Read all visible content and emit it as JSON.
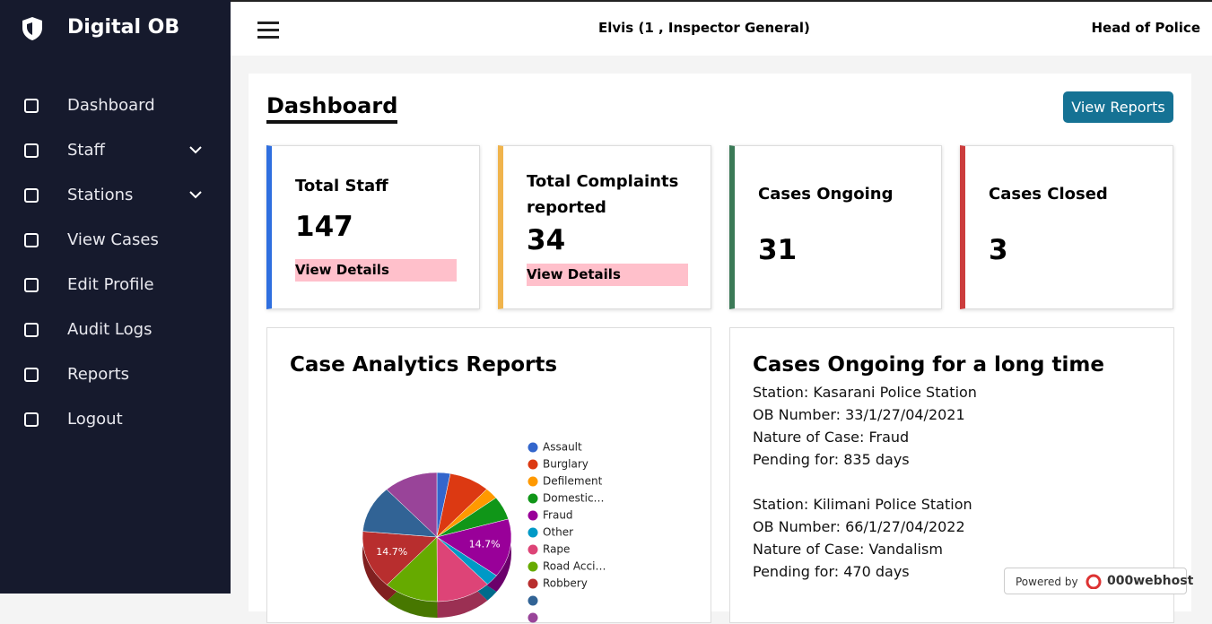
{
  "sidebar": {
    "brand": "Digital OB",
    "nav": [
      "Dashboard",
      "Staff",
      "Stations",
      "View Cases",
      "Edit Profile",
      "Audit Logs",
      "Reports",
      "Logout"
    ]
  },
  "header": {
    "user": "Elvis (1 , Inspector General)",
    "role": "Head of Police"
  },
  "page": {
    "title": "Dashboard",
    "button": "View Reports"
  },
  "cards": [
    {
      "label": "Total Staff",
      "value": 147,
      "link": "View Details"
    },
    {
      "label": "Total Complaints reported",
      "value": 34,
      "link": "View Details"
    },
    {
      "label": "Cases Ongoing",
      "value": 31
    },
    {
      "label": "Cases Closed",
      "value": 3
    }
  ],
  "chart_data": {
    "type": "pie",
    "title": "Case Analytics Reports",
    "categories": [
      "Assault",
      "Burglary",
      "Defilement",
      "Domestic…",
      "Fraud",
      "Other",
      "Rape",
      "Road Acci…",
      "Robbery",
      null,
      null
    ],
    "values": [
      2.9,
      8.8,
      2.9,
      5.9,
      14.7,
      2.9,
      11.8,
      11.8,
      14.7,
      11.8,
      11.8
    ],
    "value_labels": [
      null,
      null,
      null,
      null,
      "14.7%",
      null,
      null,
      null,
      "14.7%",
      null,
      null
    ],
    "colors": [
      "#3366cc",
      "#dc3912",
      "#ff9900",
      "#109618",
      "#990099",
      "#0099c6",
      "#dd4477",
      "#66aa00",
      "#b82e2e",
      "#316395",
      "#994499"
    ]
  },
  "long_cases": {
    "title": "Cases Ongoing for a long time",
    "entries": [
      [
        "Station: Kasarani Police Station",
        "OB Number: 33/1/27/04/2021",
        "Nature of Case: Fraud",
        "Pending for: 835 days"
      ],
      [
        "Station: Kilimani Police Station",
        "OB Number: 66/1/27/04/2022",
        "Nature of Case: Vandalism",
        "Pending for: 470 days"
      ]
    ]
  },
  "badge": {
    "text": "Powered by",
    "brand": "000webhost"
  }
}
